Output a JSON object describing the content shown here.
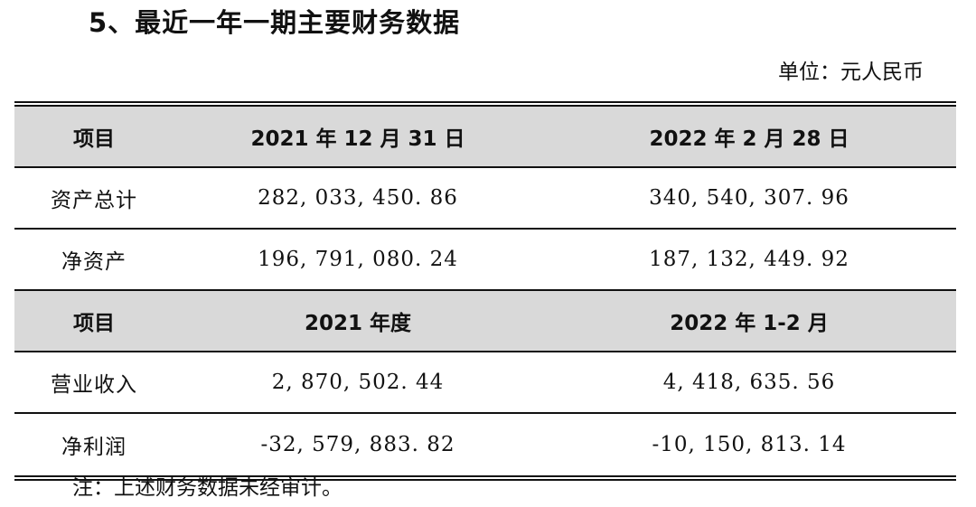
{
  "heading": "5、最近一年一期主要财务数据",
  "unit_label": "单位：元人民币",
  "table": {
    "header1": [
      "项目",
      "2021 年 12 月 31 日",
      "2022 年 2 月 28 日"
    ],
    "rows1": [
      [
        "资产总计",
        "282, 033, 450. 86",
        "340, 540, 307. 96"
      ],
      [
        "净资产",
        "196, 791, 080. 24",
        "187, 132, 449. 92"
      ]
    ],
    "header2": [
      "项目",
      "2021 年度",
      "2022 年 1-2 月"
    ],
    "rows2": [
      [
        "营业收入",
        "2, 870, 502. 44",
        "4, 418, 635. 56"
      ],
      [
        "净利润",
        "-32, 579, 883. 82",
        "-10, 150, 813. 14"
      ]
    ]
  },
  "note": "注：上述财务数据未经审计。"
}
